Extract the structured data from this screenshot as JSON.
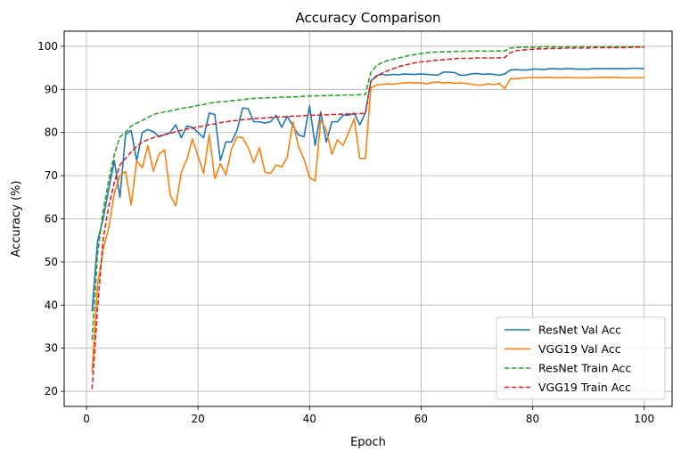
{
  "chart_data": {
    "type": "line",
    "title": "Accuracy Comparison",
    "xlabel": "Epoch",
    "ylabel": "Accuracy (%)",
    "xlim": [
      -4,
      105
    ],
    "ylim": [
      16.5,
      103.5
    ],
    "xticks": [
      0,
      20,
      40,
      60,
      80,
      100
    ],
    "yticks": [
      20,
      30,
      40,
      50,
      60,
      70,
      80,
      90,
      100
    ],
    "grid": true,
    "legend_position": "lower right",
    "epochs_start": 1,
    "series": [
      {
        "name": "ResNet Val Acc",
        "color": "#1f77b4",
        "style": "solid",
        "values": [
          38.5,
          55.0,
          60.0,
          67.0,
          73.5,
          65.0,
          79.5,
          80.5,
          73.5,
          80.0,
          80.7,
          80.2,
          79.0,
          79.5,
          80.0,
          81.8,
          78.8,
          81.5,
          81.2,
          80.0,
          78.8,
          84.5,
          84.2,
          73.5,
          77.8,
          77.8,
          80.5,
          85.7,
          85.5,
          82.5,
          82.5,
          82.2,
          82.5,
          84.0,
          81.2,
          83.8,
          81.5,
          79.5,
          79.0,
          86.2,
          77.0,
          84.8,
          77.8,
          82.5,
          82.5,
          84.0,
          84.0,
          84.5,
          81.8,
          84.5,
          92.0,
          93.2,
          93.5,
          93.3,
          93.5,
          93.4,
          93.6,
          93.5,
          93.5,
          93.6,
          93.5,
          93.4,
          93.3,
          94.0,
          94.0,
          93.9,
          93.3,
          93.3,
          93.6,
          93.7,
          93.5,
          93.6,
          93.5,
          93.3,
          93.6,
          94.5,
          94.6,
          94.5,
          94.5,
          94.7,
          94.7,
          94.6,
          94.8,
          94.8,
          94.7,
          94.8,
          94.8,
          94.7,
          94.7,
          94.7,
          94.8,
          94.8,
          94.8,
          94.8,
          94.8,
          94.8,
          94.8,
          94.9,
          94.9,
          94.8
        ]
      },
      {
        "name": "VGG19 Val Acc",
        "color": "#ff7f0e",
        "style": "solid",
        "values": [
          24.5,
          45.0,
          53.0,
          58.0,
          66.0,
          70.0,
          71.0,
          63.2,
          73.5,
          71.8,
          77.0,
          71.0,
          75.0,
          76.0,
          65.5,
          63.0,
          70.8,
          73.8,
          78.5,
          74.5,
          70.5,
          79.5,
          69.3,
          72.8,
          70.2,
          76.2,
          79.0,
          78.8,
          76.5,
          73.0,
          76.5,
          70.8,
          70.5,
          72.5,
          72.0,
          74.3,
          82.5,
          76.8,
          73.8,
          69.5,
          68.8,
          83.0,
          80.5,
          75.0,
          78.3,
          77.0,
          80.0,
          83.2,
          74.0,
          74.0,
          90.5,
          91.0,
          91.2,
          91.3,
          91.2,
          91.4,
          91.5,
          91.6,
          91.5,
          91.5,
          91.3,
          91.6,
          91.7,
          91.5,
          91.6,
          91.4,
          91.5,
          91.4,
          91.2,
          91.0,
          91.0,
          91.3,
          91.1,
          91.4,
          90.2,
          92.5,
          92.5,
          92.6,
          92.7,
          92.8,
          92.7,
          92.8,
          92.8,
          92.7,
          92.7,
          92.8,
          92.7,
          92.7,
          92.7,
          92.7,
          92.7,
          92.8,
          92.8,
          92.8,
          92.8,
          92.7,
          92.7,
          92.7,
          92.7,
          92.7
        ]
      },
      {
        "name": "ResNet Train Acc",
        "color": "#2ca02c",
        "style": "dashed",
        "values": [
          32.0,
          52.0,
          62.0,
          69.0,
          75.0,
          79.0,
          80.0,
          81.5,
          82.2,
          82.8,
          83.5,
          84.2,
          84.5,
          84.8,
          85.0,
          85.3,
          85.6,
          85.8,
          86.0,
          86.3,
          86.5,
          86.8,
          87.0,
          87.1,
          87.2,
          87.4,
          87.5,
          87.6,
          87.8,
          87.9,
          88.0,
          88.0,
          88.1,
          88.1,
          88.2,
          88.2,
          88.3,
          88.3,
          88.4,
          88.5,
          88.5,
          88.5,
          88.6,
          88.6,
          88.6,
          88.7,
          88.7,
          88.7,
          88.8,
          88.8,
          94.0,
          95.5,
          96.2,
          96.7,
          97.0,
          97.3,
          97.6,
          97.9,
          98.1,
          98.3,
          98.5,
          98.6,
          98.7,
          98.7,
          98.7,
          98.8,
          98.8,
          98.9,
          98.9,
          98.9,
          98.9,
          98.9,
          98.9,
          98.9,
          98.9,
          99.6,
          99.7,
          99.8,
          99.8,
          99.8,
          99.8,
          99.9,
          99.9,
          99.9,
          99.9,
          99.9,
          99.9,
          99.9,
          99.9,
          99.9,
          99.9,
          99.9,
          99.9,
          99.9,
          99.9,
          99.9,
          99.9,
          99.9,
          99.9,
          99.9
        ]
      },
      {
        "name": "VGG19 Train Acc",
        "color": "#d62728",
        "style": "dashed",
        "values": [
          20.5,
          39.5,
          55.5,
          63.0,
          68.5,
          72.5,
          74.0,
          75.5,
          76.8,
          77.8,
          78.3,
          78.8,
          79.2,
          79.5,
          79.8,
          80.2,
          80.5,
          80.8,
          81.0,
          81.3,
          81.5,
          81.8,
          82.0,
          82.3,
          82.5,
          82.7,
          82.8,
          83.0,
          83.1,
          83.2,
          83.3,
          83.4,
          83.5,
          83.6,
          83.6,
          83.7,
          83.8,
          83.8,
          83.9,
          84.0,
          84.0,
          84.1,
          84.1,
          84.2,
          84.2,
          84.3,
          84.3,
          84.3,
          84.4,
          84.4,
          92.0,
          93.0,
          93.8,
          94.3,
          94.8,
          95.3,
          95.6,
          95.9,
          96.2,
          96.4,
          96.5,
          96.7,
          96.8,
          96.9,
          97.0,
          97.1,
          97.2,
          97.2,
          97.2,
          97.3,
          97.3,
          97.3,
          97.3,
          97.3,
          97.4,
          98.5,
          99.0,
          99.1,
          99.2,
          99.3,
          99.4,
          99.4,
          99.5,
          99.5,
          99.5,
          99.6,
          99.6,
          99.6,
          99.6,
          99.6,
          99.7,
          99.7,
          99.7,
          99.7,
          99.7,
          99.7,
          99.7,
          99.8,
          99.8,
          99.8
        ]
      }
    ]
  }
}
